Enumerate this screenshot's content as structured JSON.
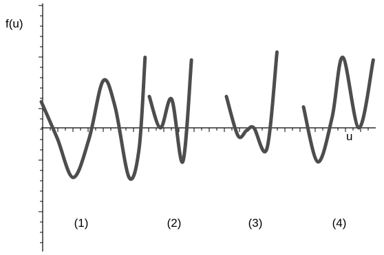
{
  "chart_data": {
    "type": "line",
    "ylabel": "f(u)",
    "xlabel": "u",
    "x_ticks": "minor ticks only, no numeric labels",
    "y_ticks": "minor ticks only, no numeric labels",
    "grid": false,
    "series_color": "#4d4d4d",
    "series": [
      {
        "name": "(1)",
        "points": [
          [
            -1.0,
            1.0
          ],
          [
            -0.6,
            -0.4
          ],
          [
            -0.2,
            -1.9
          ],
          [
            0.2,
            -0.4
          ],
          [
            0.55,
            1.8
          ],
          [
            0.85,
            0.8
          ],
          [
            1.2,
            -1.9
          ],
          [
            1.45,
            -0.8
          ],
          [
            1.6,
            2.7
          ]
        ]
      },
      {
        "name": "(2)",
        "points": [
          [
            -1.0,
            1.2
          ],
          [
            -0.55,
            0.0
          ],
          [
            -0.1,
            1.1
          ],
          [
            0.35,
            -1.3
          ],
          [
            0.7,
            2.6
          ]
        ]
      },
      {
        "name": "(3)",
        "points": [
          [
            -1.0,
            1.2
          ],
          [
            -0.6,
            -0.3
          ],
          [
            -0.3,
            -0.1
          ],
          [
            -0.05,
            0.0
          ],
          [
            0.4,
            -0.8
          ],
          [
            0.75,
            2.9
          ]
        ]
      },
      {
        "name": "(4)",
        "points": [
          [
            -1.0,
            0.8
          ],
          [
            -0.6,
            -1.3
          ],
          [
            -0.2,
            0.4
          ],
          [
            0.1,
            2.7
          ],
          [
            0.55,
            0.0
          ],
          [
            0.95,
            2.6
          ]
        ]
      }
    ]
  }
}
